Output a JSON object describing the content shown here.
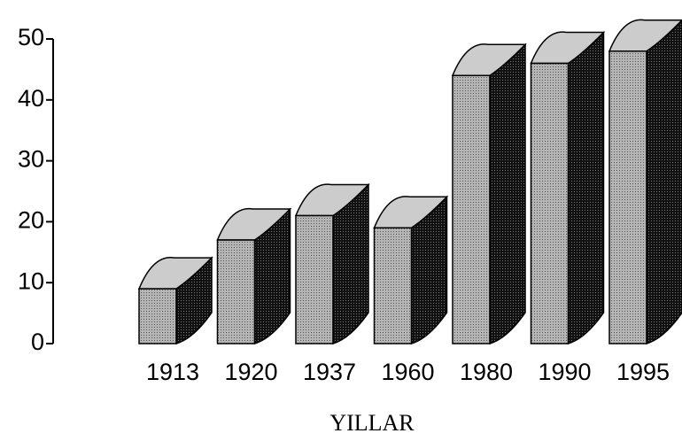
{
  "chart_data": {
    "type": "bar3d",
    "xlabel": "YILLAR",
    "categories": [
      "1913",
      "1920",
      "1937",
      "1960",
      "1980",
      "1990",
      "1995"
    ],
    "values": [
      9,
      17,
      21,
      19,
      44,
      46,
      48
    ],
    "color": "#9a9a9a",
    "ylim": [
      0,
      50
    ],
    "yticks": [
      0,
      10,
      20,
      30,
      40,
      50
    ],
    "grid": false
  }
}
